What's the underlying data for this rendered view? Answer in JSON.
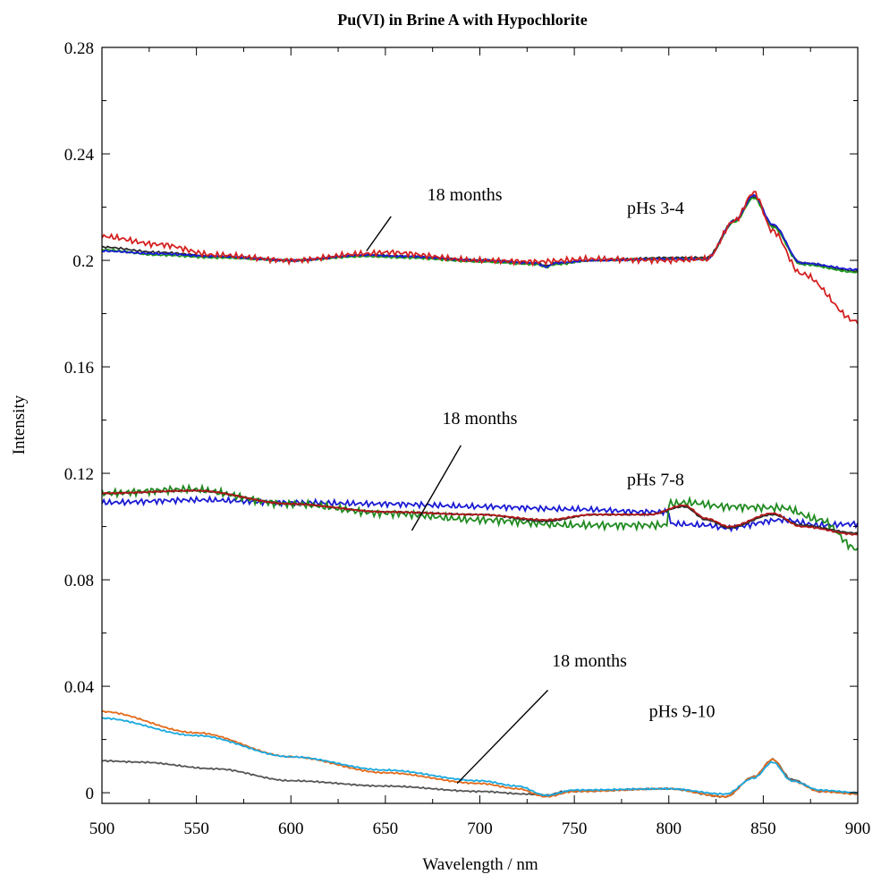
{
  "chart_data": {
    "type": "line",
    "title": "Pu(VI) in Brine A with Hypochlorite",
    "xlabel": "Wavelength / nm",
    "ylabel": "Intensity",
    "xlim": [
      500,
      900
    ],
    "ylim": [
      -0.004,
      0.28
    ],
    "x_ticks": [
      "500",
      "550",
      "600",
      "650",
      "700",
      "750",
      "800",
      "850",
      "900"
    ],
    "y_ticks": [
      "0",
      "0.04",
      "0.08",
      "0.12",
      "0.16",
      "0.2",
      "0.24",
      "0.28"
    ],
    "grid": false,
    "legend": "none",
    "annotations": [
      {
        "text": "18 months",
        "x": 692,
        "y": 0.2225,
        "arrow_from": [
          653,
          0.2165
        ],
        "arrow_to": [
          640,
          0.2035
        ]
      },
      {
        "text": "pHs 3-4",
        "x": 793,
        "y": 0.2175
      },
      {
        "text": "18 months",
        "x": 700,
        "y": 0.1385,
        "arrow_from": [
          690,
          0.1305
        ],
        "arrow_to": [
          664,
          0.0985
        ]
      },
      {
        "text": "pHs 7-8",
        "x": 793,
        "y": 0.1155
      },
      {
        "text": "18 months",
        "x": 758,
        "y": 0.0475,
        "arrow_from": [
          736,
          0.0385
        ],
        "arrow_to": [
          688,
          0.0035
        ]
      },
      {
        "text": "pHs 9-10",
        "x": 807,
        "y": 0.0285
      }
    ],
    "series": [
      {
        "group": "pHs 3-4",
        "color": "#2a2a2a",
        "noise": 0.0004,
        "x": [
          500,
          530,
          560,
          600,
          640,
          660,
          700,
          730,
          735,
          740,
          760,
          800,
          820,
          835,
          845,
          855,
          870,
          900
        ],
        "y": [
          0.205,
          0.203,
          0.2015,
          0.2,
          0.202,
          0.2015,
          0.2,
          0.199,
          0.198,
          0.199,
          0.2,
          0.201,
          0.201,
          0.215,
          0.224,
          0.213,
          0.199,
          0.196
        ]
      },
      {
        "group": "pHs 3-4",
        "color": "#1f9a1f",
        "noise": 0.0004,
        "x": [
          500,
          530,
          560,
          600,
          640,
          660,
          700,
          730,
          735,
          740,
          760,
          800,
          820,
          835,
          845,
          855,
          870,
          900
        ],
        "y": [
          0.204,
          0.202,
          0.201,
          0.2,
          0.2015,
          0.201,
          0.1995,
          0.1985,
          0.1975,
          0.1985,
          0.2,
          0.2005,
          0.2005,
          0.2145,
          0.2235,
          0.2125,
          0.1985,
          0.1955
        ]
      },
      {
        "group": "pHs 3-4",
        "color": "#1a1ad4",
        "noise": 0.0004,
        "x": [
          500,
          530,
          560,
          600,
          640,
          660,
          700,
          730,
          735,
          740,
          760,
          800,
          820,
          835,
          845,
          855,
          870,
          900
        ],
        "y": [
          0.2035,
          0.2025,
          0.2015,
          0.2,
          0.202,
          0.2015,
          0.2,
          0.199,
          0.1975,
          0.199,
          0.2,
          0.2005,
          0.2005,
          0.215,
          0.2245,
          0.2135,
          0.199,
          0.1965
        ]
      },
      {
        "group": "pHs 3-4",
        "color": "#d42020",
        "noise": 0.0012,
        "x": [
          500,
          530,
          560,
          600,
          640,
          650,
          700,
          730,
          760,
          800,
          820,
          835,
          845,
          855,
          870,
          900
        ],
        "y": [
          0.209,
          0.206,
          0.202,
          0.2,
          0.2025,
          0.203,
          0.2,
          0.1995,
          0.2005,
          0.2,
          0.2005,
          0.215,
          0.2255,
          0.211,
          0.195,
          0.177
        ]
      },
      {
        "group": "pHs 7-8",
        "color": "#1a1ad4",
        "noise": 0.0012,
        "x": [
          500,
          550,
          600,
          650,
          700,
          750,
          790,
          800,
          801,
          820,
          830,
          860,
          880,
          900
        ],
        "y": [
          0.109,
          0.11,
          0.109,
          0.1085,
          0.1075,
          0.1065,
          0.1055,
          0.1055,
          0.101,
          0.1005,
          0.0995,
          0.1025,
          0.1005,
          0.101
        ]
      },
      {
        "group": "pHs 7-8",
        "color": "#1f8a1f",
        "noise": 0.0016,
        "x": [
          500,
          545,
          600,
          650,
          700,
          750,
          790,
          799,
          800,
          810,
          830,
          860,
          880,
          900
        ],
        "y": [
          0.1125,
          0.114,
          0.1085,
          0.105,
          0.1025,
          0.1005,
          0.1005,
          0.1005,
          0.1085,
          0.109,
          0.1075,
          0.107,
          0.1025,
          0.0915
        ]
      },
      {
        "group": "pHs 7-8",
        "color": "#2a2a2a",
        "noise": 0.0003,
        "x": [
          500,
          550,
          600,
          650,
          700,
          735,
          760,
          790,
          808,
          820,
          832,
          855,
          870,
          900
        ],
        "y": [
          0.1125,
          0.1135,
          0.1085,
          0.1055,
          0.1045,
          0.102,
          0.1045,
          0.1045,
          0.1075,
          0.1025,
          0.0995,
          0.1045,
          0.1005,
          0.0975
        ]
      },
      {
        "group": "pHs 7-8",
        "color": "#b01818",
        "noise": 0.0003,
        "x": [
          500,
          550,
          600,
          650,
          700,
          735,
          760,
          790,
          808,
          820,
          832,
          855,
          870,
          900
        ],
        "y": [
          0.1125,
          0.1135,
          0.1085,
          0.1055,
          0.1045,
          0.1025,
          0.1045,
          0.1045,
          0.108,
          0.103,
          0.1,
          0.105,
          0.1,
          0.097
        ]
      },
      {
        "group": "pHs 9-10",
        "color": "#555555",
        "noise": 0.0003,
        "x": [
          500,
          520,
          560,
          600,
          650,
          700,
          725,
          735,
          745,
          800,
          830,
          845,
          855,
          865,
          880,
          900
        ],
        "y": [
          0.012,
          0.0115,
          0.009,
          0.0045,
          0.0025,
          0.0005,
          -0.0005,
          -0.001,
          0.0005,
          0.0015,
          -0.0015,
          0.006,
          0.0125,
          0.005,
          0.0005,
          0.0
        ]
      },
      {
        "group": "pHs 9-10",
        "color": "#e2691a",
        "noise": 0.0003,
        "x": [
          500,
          550,
          600,
          650,
          700,
          720,
          735,
          750,
          800,
          830,
          845,
          855,
          865,
          880,
          900
        ],
        "y": [
          0.0305,
          0.0225,
          0.0135,
          0.0075,
          0.0035,
          0.0015,
          -0.0015,
          0.0005,
          0.0015,
          -0.0015,
          0.006,
          0.0125,
          0.0045,
          0.0005,
          -0.0005
        ]
      },
      {
        "group": "pHs 9-10",
        "color": "#1aa8df",
        "noise": 0.0003,
        "x": [
          500,
          550,
          600,
          650,
          700,
          720,
          735,
          750,
          800,
          830,
          845,
          855,
          865,
          880,
          900
        ],
        "y": [
          0.028,
          0.0215,
          0.0135,
          0.0085,
          0.0045,
          0.0025,
          -0.001,
          0.001,
          0.0015,
          -0.0005,
          0.0055,
          0.0115,
          0.0045,
          0.001,
          0.0
        ]
      }
    ]
  }
}
